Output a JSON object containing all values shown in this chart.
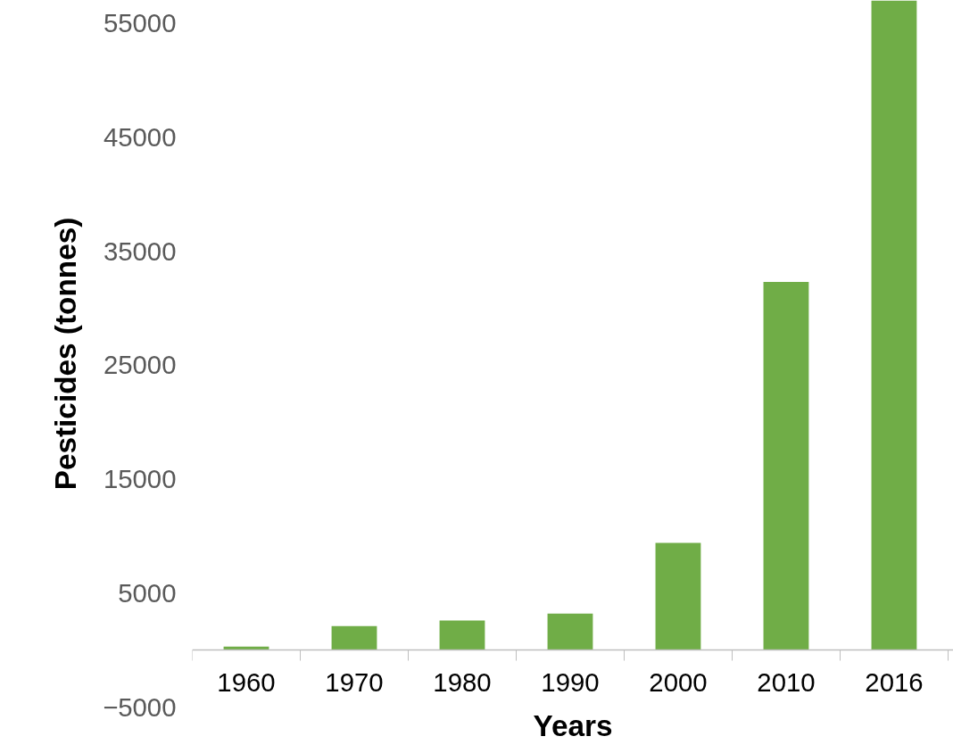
{
  "chart_data": {
    "type": "bar",
    "xlabel": "Years",
    "ylabel": "Pesticides (tonnes)",
    "categories": [
      "1960",
      "1970",
      "1980",
      "1990",
      "2000",
      "2010",
      "2016"
    ],
    "values": [
      300,
      2100,
      2600,
      3200,
      9400,
      32300,
      57000
    ],
    "color": "#70ad47",
    "ylim": [
      -5000,
      57000
    ],
    "yticks": [
      -5000,
      5000,
      15000,
      25000,
      35000,
      45000,
      55000
    ],
    "grid": false
  }
}
